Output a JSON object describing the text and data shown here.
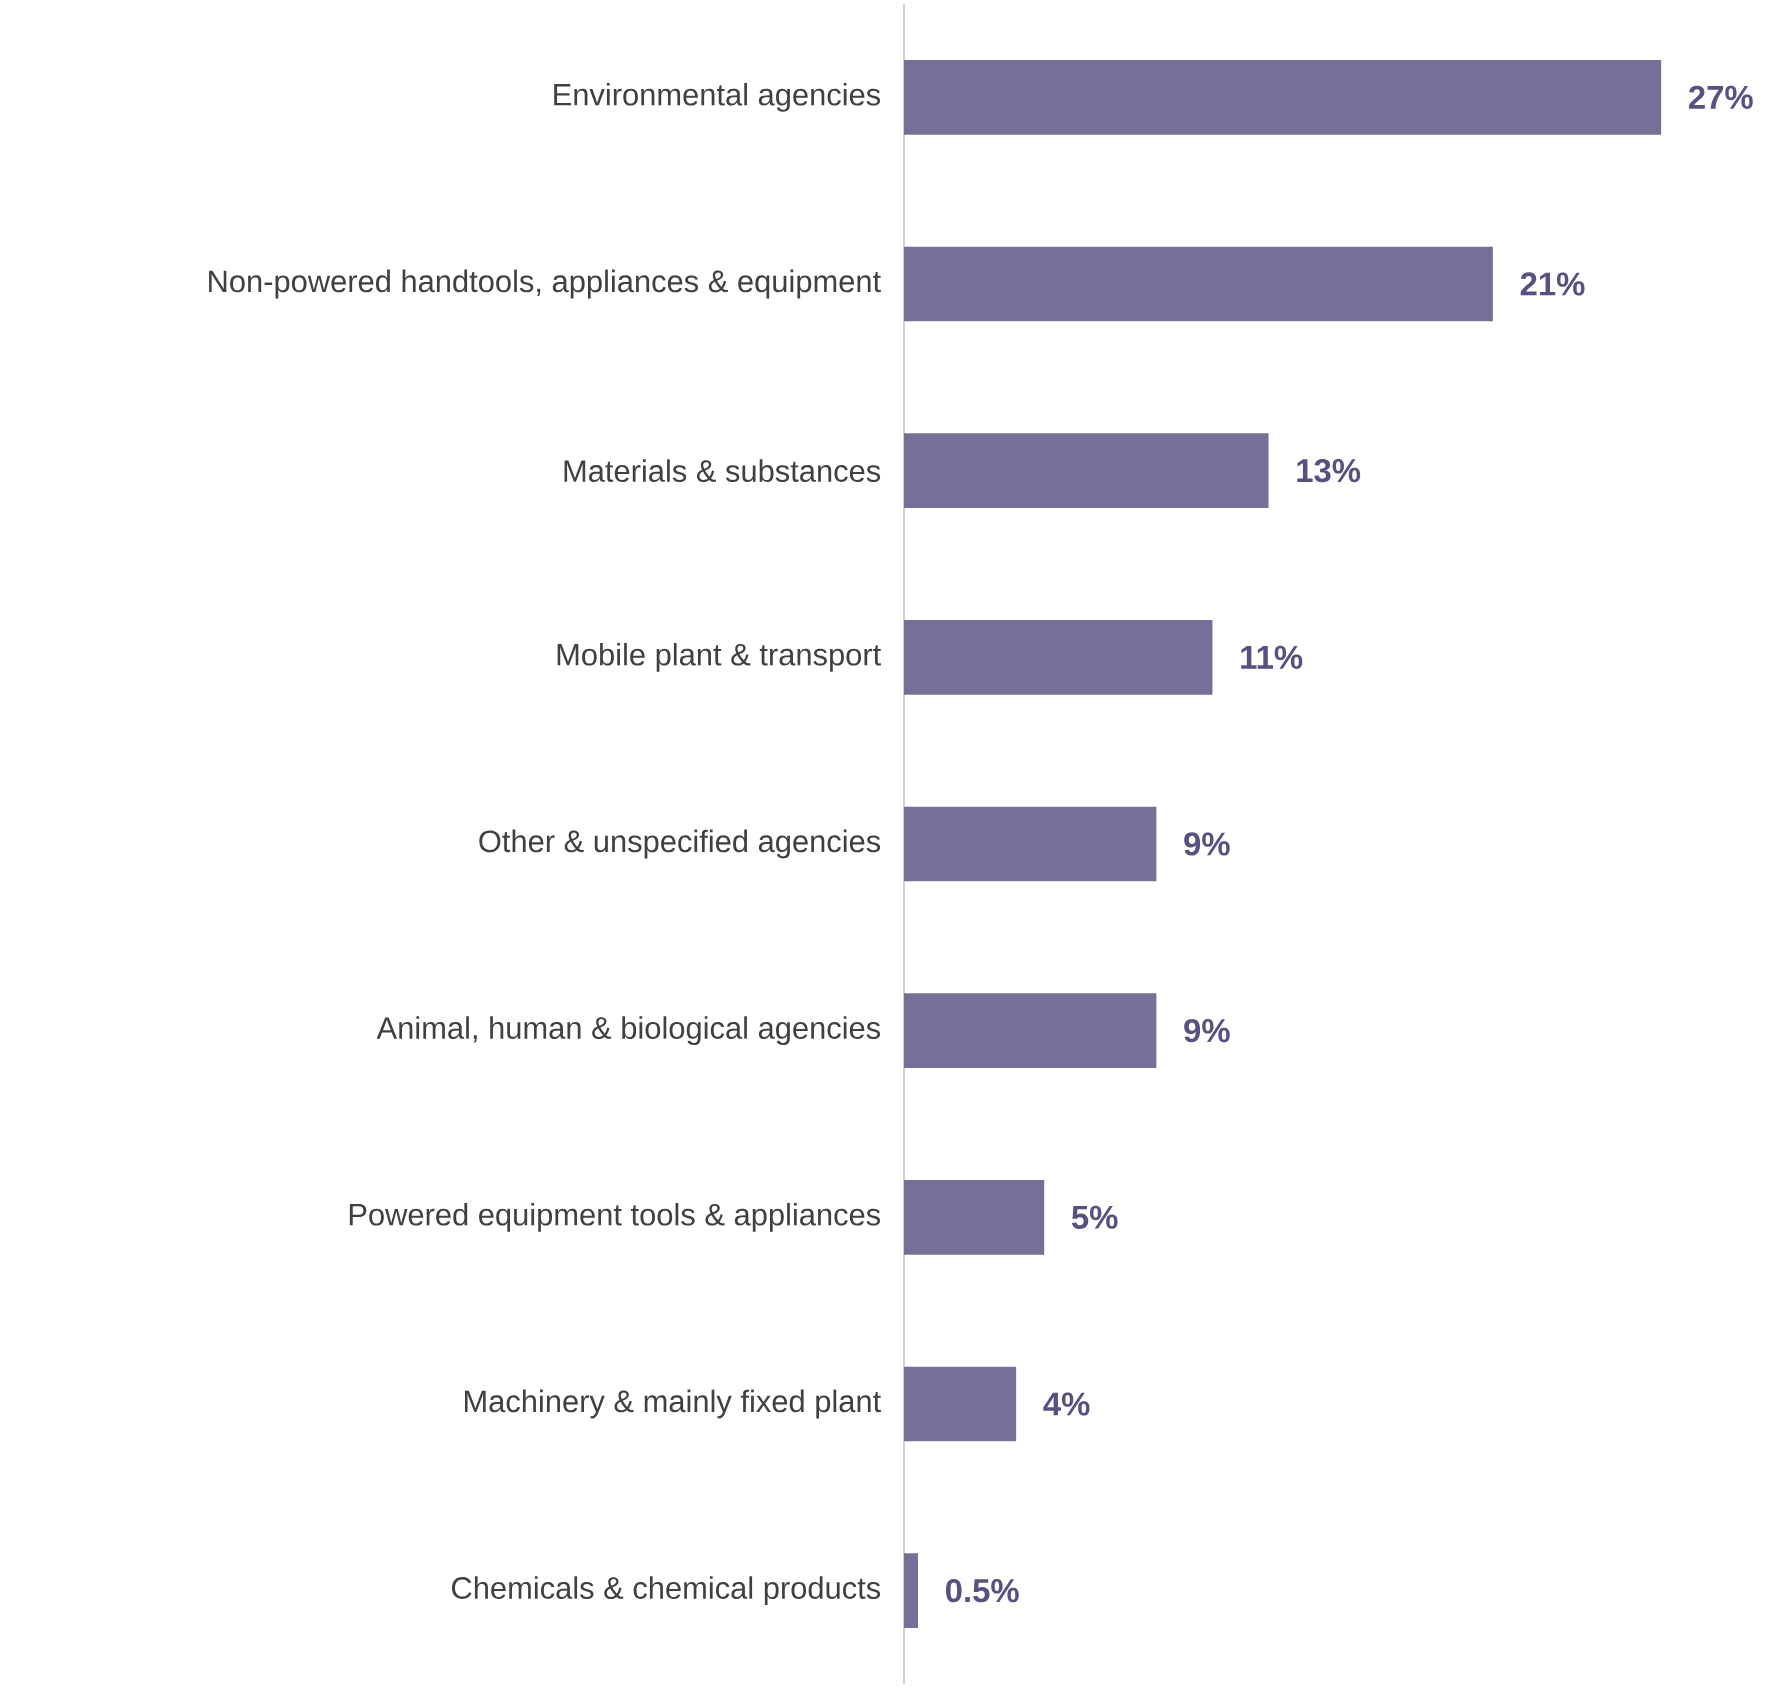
{
  "chart_data": {
    "type": "bar",
    "orientation": "horizontal",
    "categories": [
      "Environmental agencies",
      "Non-powered handtools, appliances & equipment",
      "Materials & substances",
      "Mobile plant & transport",
      "Other & unspecified agencies",
      "Animal, human & biological agencies",
      "Powered equipment tools & appliances",
      "Machinery & mainly fixed plant",
      "Chemicals & chemical products"
    ],
    "values": [
      27,
      21,
      13,
      11,
      9,
      9,
      5,
      4,
      0.5
    ],
    "value_labels": [
      "27%",
      "21%",
      "13%",
      "11%",
      "9%",
      "9%",
      "5%",
      "4%",
      "0.5%"
    ],
    "color": "#776f97"
  }
}
